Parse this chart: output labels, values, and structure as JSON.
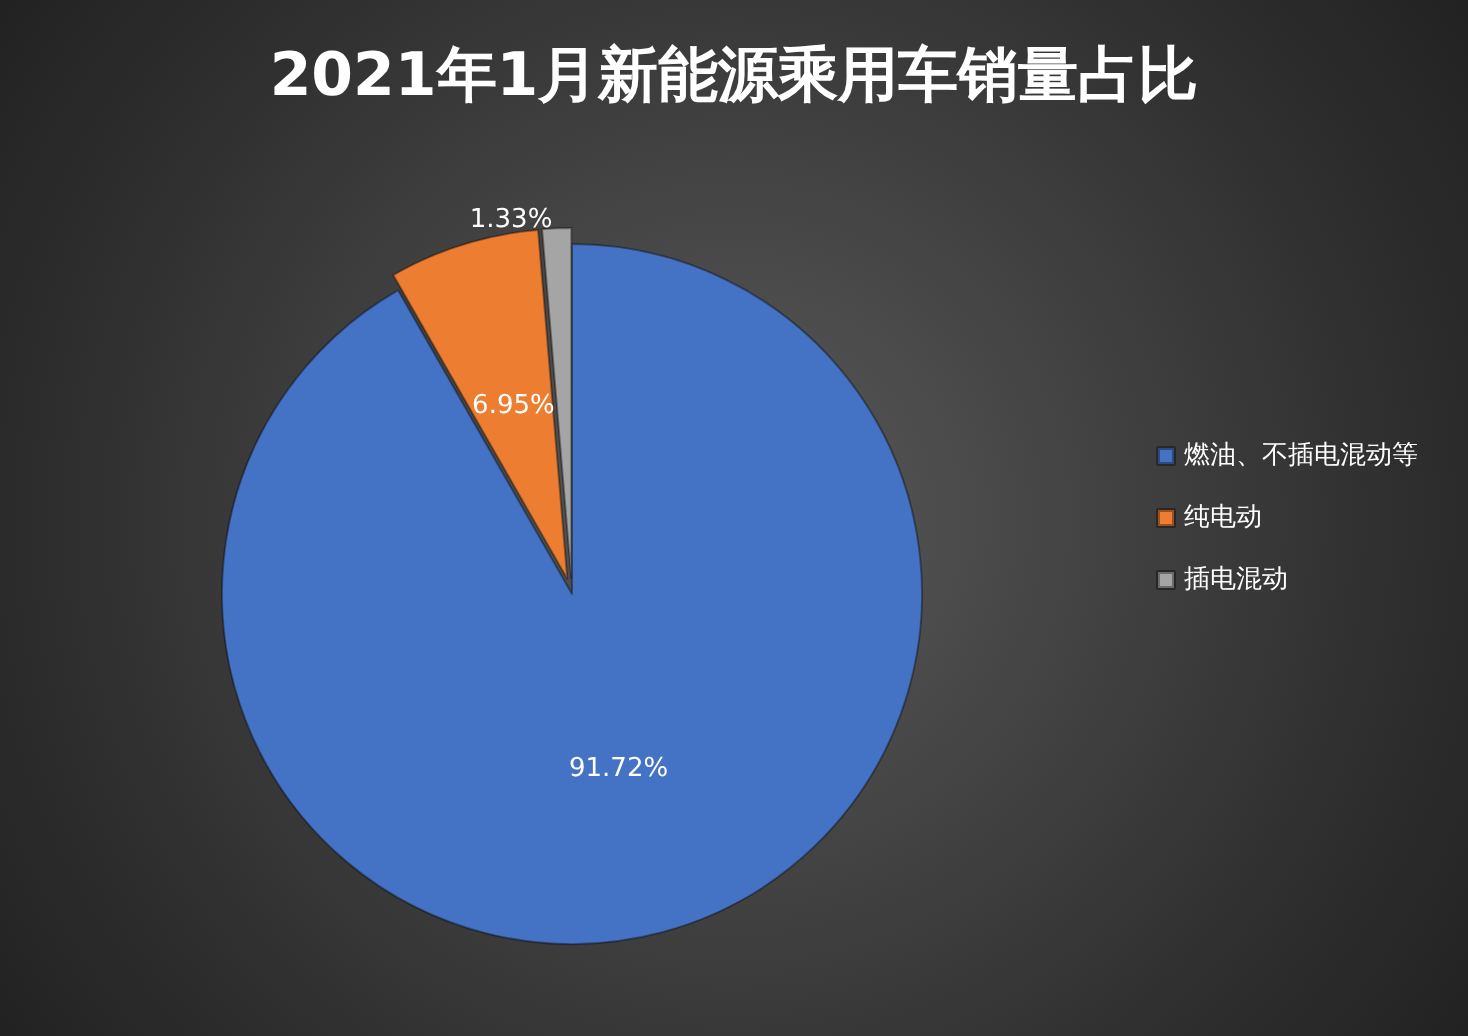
{
  "chart_data": {
    "type": "pie",
    "title": "2021年1月新能源乘用车销量占比",
    "categories": [
      "燃油、不插电混动等",
      "纯电动",
      "插电混动"
    ],
    "values": [
      91.72,
      6.95,
      1.33
    ],
    "value_labels": [
      "91.72%",
      "6.95%",
      "1.33%"
    ],
    "colors": [
      "#4472c4",
      "#ed7d31",
      "#a5a5a5"
    ],
    "legend": "right"
  }
}
